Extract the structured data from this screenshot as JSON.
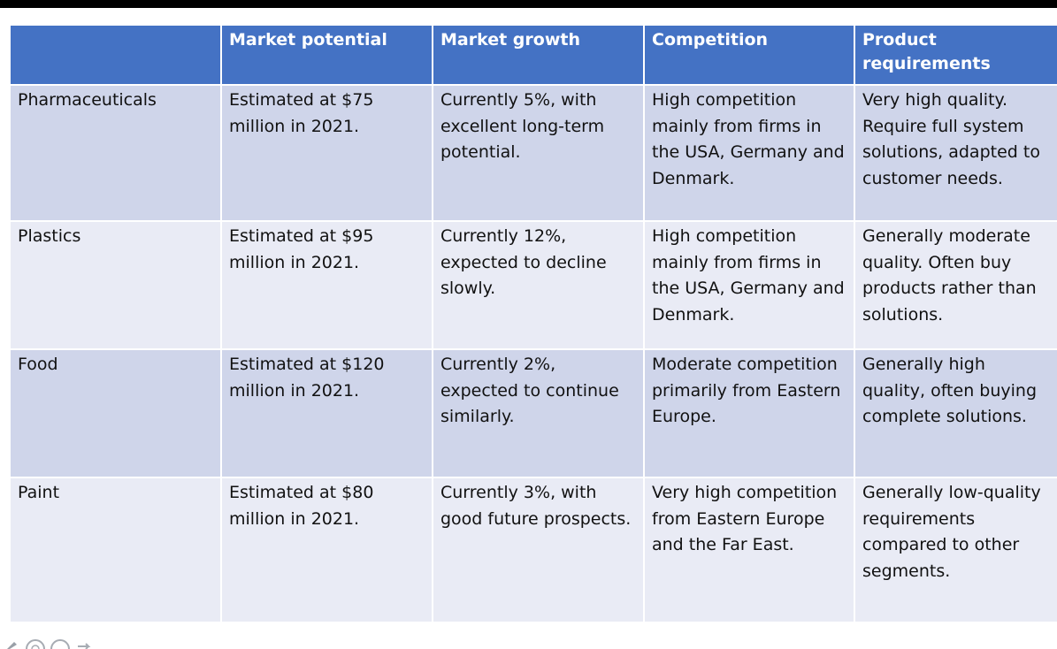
{
  "table": {
    "headers": [
      "",
      "Market potential",
      "Market growth",
      "Competition",
      "Product requirements"
    ],
    "rows": [
      {
        "segment": "Pharmaceuticals",
        "market_potential": "Estimated at $75 million in 2021.",
        "market_growth": "Currently 5%, with excellent long-term potential.",
        "competition": "High competition mainly from firms in the USA, Germany and Denmark.",
        "product_requirements": "Very high quality. Require full system solutions, adapted to customer needs."
      },
      {
        "segment": "Plastics",
        "market_potential": "Estimated at $95 million in 2021.",
        "market_growth": "Currently 12%, expected to decline slowly.",
        "competition": "High competition mainly from firms in the USA, Germany and Denmark.",
        "product_requirements": "Generally moderate quality. Often buy products rather than solutions."
      },
      {
        "segment": "Food",
        "market_potential": "Estimated at $120 million in 2021.",
        "market_growth": "Currently 2%, expected to continue similarly.",
        "competition": "Moderate competition primarily from Eastern Europe.",
        "product_requirements": "Generally high quality, often buying complete solutions."
      },
      {
        "segment": "Paint",
        "market_potential": "Estimated at $80 million in 2021.",
        "market_growth": "Currently 3%, with good future prospects.",
        "competition": "Very high competition from Eastern Europe and the Far East.",
        "product_requirements": "Generally low-quality requirements compared to other segments."
      }
    ]
  },
  "colors": {
    "header_bg": "#4472c4",
    "band_dark": "#cfd5ea",
    "band_light": "#e9ebf5"
  },
  "icons": [
    "pen-icon",
    "zoom-icon",
    "circle-icon",
    "arrow-right-icon"
  ]
}
